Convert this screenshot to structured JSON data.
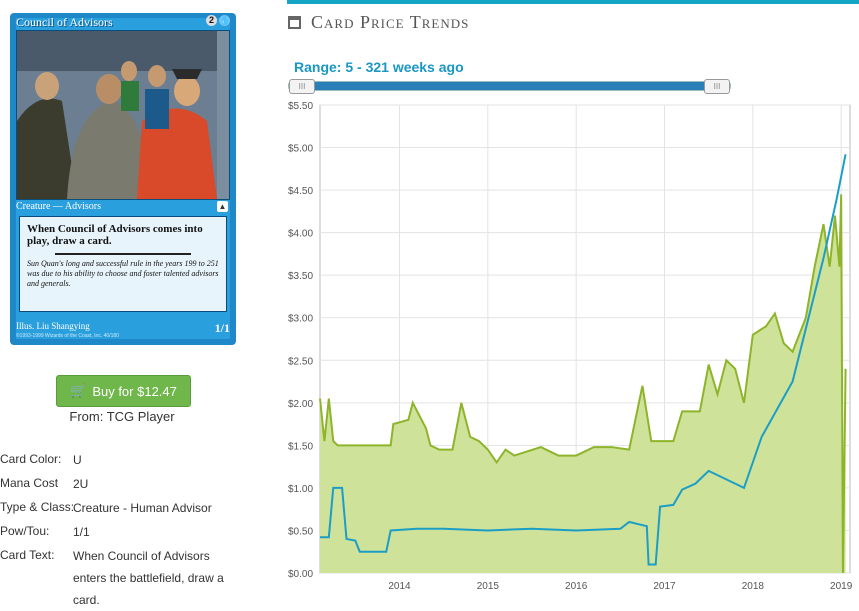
{
  "card": {
    "name": "Council of Advisors",
    "mana": [
      "2",
      "U"
    ],
    "type_line": "Creature — Advisors",
    "rules_text": "When Council of Advisors comes into play, draw a card.",
    "flavor_text": "Sun Quan's long and successful rule in the years 199 to 251 was due to his ability to choose and foster talented advisors and generals.",
    "illustrator": "Illus. Liu Shangying",
    "copyright": "©1993-1999 Wizards of the Coast, Inc. 40/180",
    "pt": "1/1"
  },
  "buy": {
    "label": "Buy for $12.47",
    "icon": "shopping-cart-icon",
    "color": "#6fb64b"
  },
  "from_label": "From: TCG Player",
  "details": {
    "color_label": "Card Color:",
    "color_value": "U",
    "mana_label": "Mana Cost",
    "mana_value": "2U",
    "type_label": "Type & Class:",
    "type_value": "Creature - Human Advisor",
    "pt_label": "Pow/Tou:",
    "pt_value": "1/1",
    "text_label": "Card Text:",
    "text_value": "When Council of Advisors enters the battlefield, draw a card."
  },
  "panel": {
    "title": "Card Price Trends",
    "title_icon": "calendar-icon",
    "accent": "#15a5c7",
    "range_label": "Range: 5 - 321 weeks ago",
    "handle_glyph": "III"
  },
  "chart_data": {
    "type": "line",
    "x_ticks": [
      "2014",
      "2015",
      "2016",
      "2017",
      "2018",
      "2019"
    ],
    "y_ticks": [
      "$0.00",
      "$0.50",
      "$1.00",
      "$1.50",
      "$2.00",
      "$2.50",
      "$3.00",
      "$3.50",
      "$4.00",
      "$4.50",
      "$5.00",
      "$5.50"
    ],
    "xlim": [
      2013.1,
      2019.1
    ],
    "ylim": [
      0,
      5.5
    ],
    "grid": true,
    "series": [
      {
        "color": "#8db42a",
        "fill": "#cfe29a",
        "area": true,
        "points": [
          [
            2013.1,
            2.05
          ],
          [
            2013.15,
            1.55
          ],
          [
            2013.2,
            2.05
          ],
          [
            2013.25,
            1.55
          ],
          [
            2013.3,
            1.5
          ],
          [
            2013.5,
            1.5
          ],
          [
            2013.7,
            1.5
          ],
          [
            2013.9,
            1.5
          ],
          [
            2013.93,
            1.75
          ],
          [
            2014.1,
            1.8
          ],
          [
            2014.15,
            2.0
          ],
          [
            2014.3,
            1.7
          ],
          [
            2014.35,
            1.5
          ],
          [
            2014.45,
            1.45
          ],
          [
            2014.6,
            1.45
          ],
          [
            2014.7,
            2.0
          ],
          [
            2014.8,
            1.6
          ],
          [
            2014.9,
            1.55
          ],
          [
            2015.0,
            1.45
          ],
          [
            2015.1,
            1.3
          ],
          [
            2015.2,
            1.45
          ],
          [
            2015.3,
            1.38
          ],
          [
            2015.6,
            1.48
          ],
          [
            2015.8,
            1.38
          ],
          [
            2016.0,
            1.38
          ],
          [
            2016.2,
            1.48
          ],
          [
            2016.4,
            1.48
          ],
          [
            2016.6,
            1.45
          ],
          [
            2016.75,
            2.2
          ],
          [
            2016.85,
            1.55
          ],
          [
            2017.1,
            1.55
          ],
          [
            2017.2,
            1.9
          ],
          [
            2017.4,
            1.9
          ],
          [
            2017.5,
            2.45
          ],
          [
            2017.6,
            2.1
          ],
          [
            2017.7,
            2.5
          ],
          [
            2017.8,
            2.4
          ],
          [
            2017.9,
            2.0
          ],
          [
            2018.0,
            2.8
          ],
          [
            2018.15,
            2.9
          ],
          [
            2018.25,
            3.05
          ],
          [
            2018.35,
            2.7
          ],
          [
            2018.45,
            2.6
          ],
          [
            2018.6,
            3.0
          ],
          [
            2018.7,
            3.6
          ],
          [
            2018.8,
            4.1
          ],
          [
            2018.87,
            3.6
          ],
          [
            2018.93,
            4.2
          ],
          [
            2018.98,
            3.6
          ],
          [
            2019.0,
            4.45
          ],
          [
            2019.02,
            0.0
          ],
          [
            2019.05,
            2.4
          ]
        ]
      },
      {
        "color": "#1b9ec6",
        "area": false,
        "points": [
          [
            2013.1,
            0.42
          ],
          [
            2013.2,
            0.42
          ],
          [
            2013.25,
            1.0
          ],
          [
            2013.35,
            1.0
          ],
          [
            2013.4,
            0.4
          ],
          [
            2013.5,
            0.38
          ],
          [
            2013.55,
            0.25
          ],
          [
            2013.85,
            0.25
          ],
          [
            2013.9,
            0.5
          ],
          [
            2014.2,
            0.52
          ],
          [
            2014.5,
            0.52
          ],
          [
            2015.0,
            0.5
          ],
          [
            2015.5,
            0.52
          ],
          [
            2016.0,
            0.5
          ],
          [
            2016.5,
            0.52
          ],
          [
            2016.6,
            0.6
          ],
          [
            2016.8,
            0.55
          ],
          [
            2016.82,
            0.1
          ],
          [
            2016.9,
            0.1
          ],
          [
            2016.95,
            0.78
          ],
          [
            2017.1,
            0.8
          ],
          [
            2017.2,
            0.98
          ],
          [
            2017.35,
            1.05
          ],
          [
            2017.5,
            1.2
          ],
          [
            2017.9,
            1.0
          ],
          [
            2018.1,
            1.6
          ],
          [
            2018.45,
            2.25
          ],
          [
            2018.8,
            3.7
          ],
          [
            2018.95,
            4.4
          ],
          [
            2019.05,
            4.92
          ]
        ]
      }
    ]
  }
}
